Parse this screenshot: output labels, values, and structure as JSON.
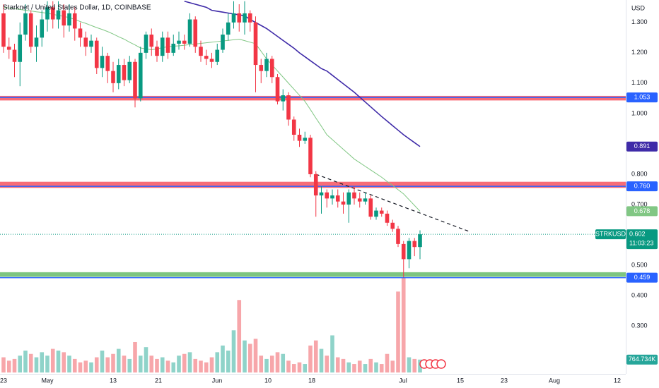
{
  "chart_data": {
    "type": "candlestick",
    "title": "Starknet / United States Dollar, 1D, COINBASE",
    "currency": "USD",
    "xticks": [
      "23",
      "May",
      "13",
      "21",
      "Jun",
      "10",
      "18",
      "Jul",
      "15",
      "23",
      "Aug",
      "12"
    ],
    "ylim": [
      0.142,
      1.374
    ],
    "yticks": [
      {
        "value": 1.3,
        "label": "1.300"
      },
      {
        "value": 1.2,
        "label": "1.200"
      },
      {
        "value": 1.1,
        "label": "1.100"
      },
      {
        "value": 1,
        "label": "1.000"
      },
      {
        "value": 0.8,
        "label": "0.800"
      },
      {
        "value": 0.7,
        "label": "0.700"
      },
      {
        "value": 0.5,
        "label": "0.500"
      },
      {
        "value": 0.4,
        "label": "0.400"
      },
      {
        "value": 0.3,
        "label": "0.300"
      }
    ],
    "grid": false,
    "up_color": "#089981",
    "down_color": "#f23645",
    "open": [
      1.33,
      1.22,
      1.21,
      1.17,
      1.26,
      1.33,
      1.22,
      1.25,
      1.31,
      1.35,
      1.31,
      1.34,
      1.29,
      1.33,
      1.28,
      1.25,
      1.22,
      1.24,
      1.15,
      1.19,
      1.14,
      1.1,
      1.16,
      1.11,
      1.17,
      1.05,
      1.2,
      1.26,
      1.22,
      1.19,
      1.25,
      1.2,
      1.23,
      1.24,
      1.23,
      1.31,
      1.22,
      1.19,
      1.18,
      1.17,
      1.21,
      1.26,
      1.3,
      1.33,
      1.3,
      1.33,
      1.3,
      1.16,
      1.14,
      1.18,
      1.12,
      1.04,
      1.06,
      0.98,
      0.93,
      0.91,
      0.92,
      0.8,
      0.73,
      0.74,
      0.72,
      0.73,
      0.71,
      0.7,
      0.74,
      0.72,
      0.71,
      0.72,
      0.66,
      0.68,
      0.67,
      0.64,
      0.62,
      0.57,
      0.52,
      0.58,
      0.56
    ],
    "high": [
      1.36,
      1.25,
      1.23,
      1.3,
      1.36,
      1.34,
      1.29,
      1.34,
      1.37,
      1.37,
      1.37,
      1.36,
      1.36,
      1.35,
      1.3,
      1.27,
      1.26,
      1.25,
      1.22,
      1.2,
      1.17,
      1.18,
      1.18,
      1.19,
      1.18,
      1.22,
      1.27,
      1.28,
      1.24,
      1.27,
      1.27,
      1.26,
      1.27,
      1.26,
      1.33,
      1.32,
      1.24,
      1.21,
      1.2,
      1.23,
      1.28,
      1.33,
      1.37,
      1.36,
      1.37,
      1.34,
      1.32,
      1.18,
      1.2,
      1.19,
      1.13,
      1.08,
      1.07,
      0.99,
      0.95,
      0.94,
      0.93,
      0.81,
      0.76,
      0.75,
      0.75,
      0.75,
      0.74,
      0.75,
      0.76,
      0.74,
      0.74,
      0.73,
      0.69,
      0.69,
      0.68,
      0.65,
      0.63,
      0.58,
      0.59,
      0.59,
      0.615
    ],
    "low": [
      1.2,
      1.18,
      1.12,
      1.09,
      1.24,
      1.2,
      1.17,
      1.22,
      1.27,
      1.28,
      1.28,
      1.25,
      1.27,
      1.24,
      1.22,
      1.19,
      1.2,
      1.13,
      1.12,
      1.1,
      1.07,
      1.08,
      1.09,
      1.1,
      1.02,
      1.04,
      1.18,
      1.19,
      1.17,
      1.17,
      1.18,
      1.19,
      1.21,
      1.21,
      1.22,
      1.2,
      1.17,
      1.16,
      1.15,
      1.16,
      1.2,
      1.24,
      1.28,
      1.27,
      1.26,
      1.27,
      1.07,
      1.1,
      1.12,
      1.1,
      1.03,
      1.01,
      0.96,
      0.91,
      0.89,
      0.9,
      0.79,
      0.66,
      0.67,
      0.69,
      0.7,
      0.69,
      0.67,
      0.64,
      0.7,
      0.69,
      0.7,
      0.65,
      0.65,
      0.66,
      0.63,
      0.61,
      0.56,
      0.46,
      0.49,
      0.53,
      0.52
    ],
    "close": [
      1.22,
      1.21,
      1.17,
      1.26,
      1.33,
      1.22,
      1.25,
      1.31,
      1.35,
      1.31,
      1.34,
      1.29,
      1.33,
      1.28,
      1.25,
      1.22,
      1.24,
      1.15,
      1.19,
      1.14,
      1.1,
      1.16,
      1.11,
      1.17,
      1.05,
      1.2,
      1.26,
      1.22,
      1.19,
      1.25,
      1.2,
      1.23,
      1.24,
      1.23,
      1.31,
      1.22,
      1.19,
      1.18,
      1.17,
      1.21,
      1.26,
      1.3,
      1.33,
      1.3,
      1.33,
      1.3,
      1.16,
      1.14,
      1.18,
      1.12,
      1.04,
      1.06,
      0.98,
      0.93,
      0.91,
      0.92,
      0.8,
      0.73,
      0.74,
      0.72,
      0.73,
      0.71,
      0.7,
      0.74,
      0.72,
      0.71,
      0.72,
      0.66,
      0.68,
      0.67,
      0.64,
      0.62,
      0.57,
      0.52,
      0.58,
      0.56,
      0.602
    ],
    "volume": {
      "up_color": "#8fd3c9",
      "down_color": "#f7a6aa",
      "last_value_label": "764.734K",
      "values": [
        900000,
        700000,
        800000,
        1000000,
        1300000,
        1100000,
        900000,
        1200000,
        1000000,
        1400000,
        1300000,
        1200000,
        1000000,
        800000,
        600000,
        700000,
        600000,
        900000,
        1300000,
        900000,
        1100000,
        1400000,
        1000000,
        800000,
        1800000,
        1000000,
        1500000,
        1000000,
        800000,
        900000,
        700000,
        600000,
        1000000,
        1100000,
        1200000,
        800000,
        700000,
        600000,
        900000,
        1200000,
        1600000,
        1300000,
        2500000,
        4300000,
        1900000,
        1700000,
        2000000,
        1000000,
        800000,
        1000000,
        1200000,
        1100000,
        700000,
        500000,
        600000,
        500000,
        1600000,
        1900000,
        1400000,
        1000000,
        2200000,
        900000,
        800000,
        600000,
        500000,
        700000,
        500000,
        800000,
        600000,
        500000,
        1100000,
        700000,
        4800000,
        5650000,
        900000,
        800000,
        764734
      ]
    },
    "series": [
      {
        "color": "#81c784",
        "values": [
          1.35,
          1.348,
          1.345,
          1.343,
          1.34,
          1.338,
          1.335,
          1.333,
          1.33,
          1.327,
          1.323,
          1.32,
          1.316,
          1.31,
          1.303,
          1.297,
          1.29,
          1.283,
          1.277,
          1.27,
          1.262,
          1.253,
          1.245,
          1.235,
          1.226,
          1.216,
          1.213,
          1.21,
          1.213,
          1.217,
          1.22,
          1.222,
          1.223,
          1.225,
          1.227,
          1.229,
          1.231,
          1.233,
          1.235,
          1.237,
          1.239,
          1.241,
          1.243,
          1.245,
          1.24,
          1.235,
          1.23,
          1.205,
          1.18,
          1.16,
          1.14,
          1.12,
          1.1,
          1.08,
          1.06,
          1.04,
          1.013,
          0.985,
          0.958,
          0.93,
          0.914,
          0.898,
          0.882,
          0.866,
          0.85,
          0.838,
          0.826,
          0.814,
          0.802,
          0.79,
          0.776,
          0.763,
          0.749,
          0.735,
          0.716,
          0.697,
          0.678
        ]
      },
      {
        "color": "#3f2ba8",
        "values": [
          null,
          null,
          null,
          null,
          null,
          null,
          null,
          null,
          null,
          null,
          null,
          null,
          null,
          null,
          null,
          null,
          null,
          null,
          null,
          null,
          null,
          null,
          null,
          null,
          null,
          null,
          null,
          null,
          null,
          null,
          null,
          null,
          null,
          1.37,
          1.365,
          1.36,
          1.355,
          1.35,
          1.34,
          1.337,
          1.334,
          1.331,
          1.328,
          1.325,
          1.322,
          1.31,
          1.3,
          1.29,
          1.28,
          1.267,
          1.254,
          1.241,
          1.228,
          1.215,
          1.2,
          1.187,
          1.174,
          1.161,
          1.148,
          1.14,
          1.126,
          1.112,
          1.098,
          1.084,
          1.07,
          1.054,
          1.038,
          1.022,
          1.006,
          0.99,
          0.975,
          0.96,
          0.945,
          0.93,
          0.917,
          0.904,
          0.891
        ]
      }
    ],
    "zones": [
      {
        "range": [
          1.043,
          1.058
        ],
        "color": "#f7525f"
      },
      {
        "range": [
          0.755,
          0.775
        ],
        "color": "#f7525f"
      },
      {
        "range": [
          0.462,
          0.477
        ],
        "color": "#66bb6a"
      }
    ],
    "levels": [
      {
        "value": 1.053,
        "color": "#2962ff"
      },
      {
        "value": 0.76,
        "label": "0.760",
        "color": "#2962ff"
      },
      {
        "value": 0.459,
        "color": "#2962ff"
      }
    ],
    "trendline": {
      "from": 0.8,
      "to": 0.61
    },
    "last": {
      "symbol": "STRKUSD",
      "countdown": "11:03:23",
      "color": "#089981"
    }
  }
}
